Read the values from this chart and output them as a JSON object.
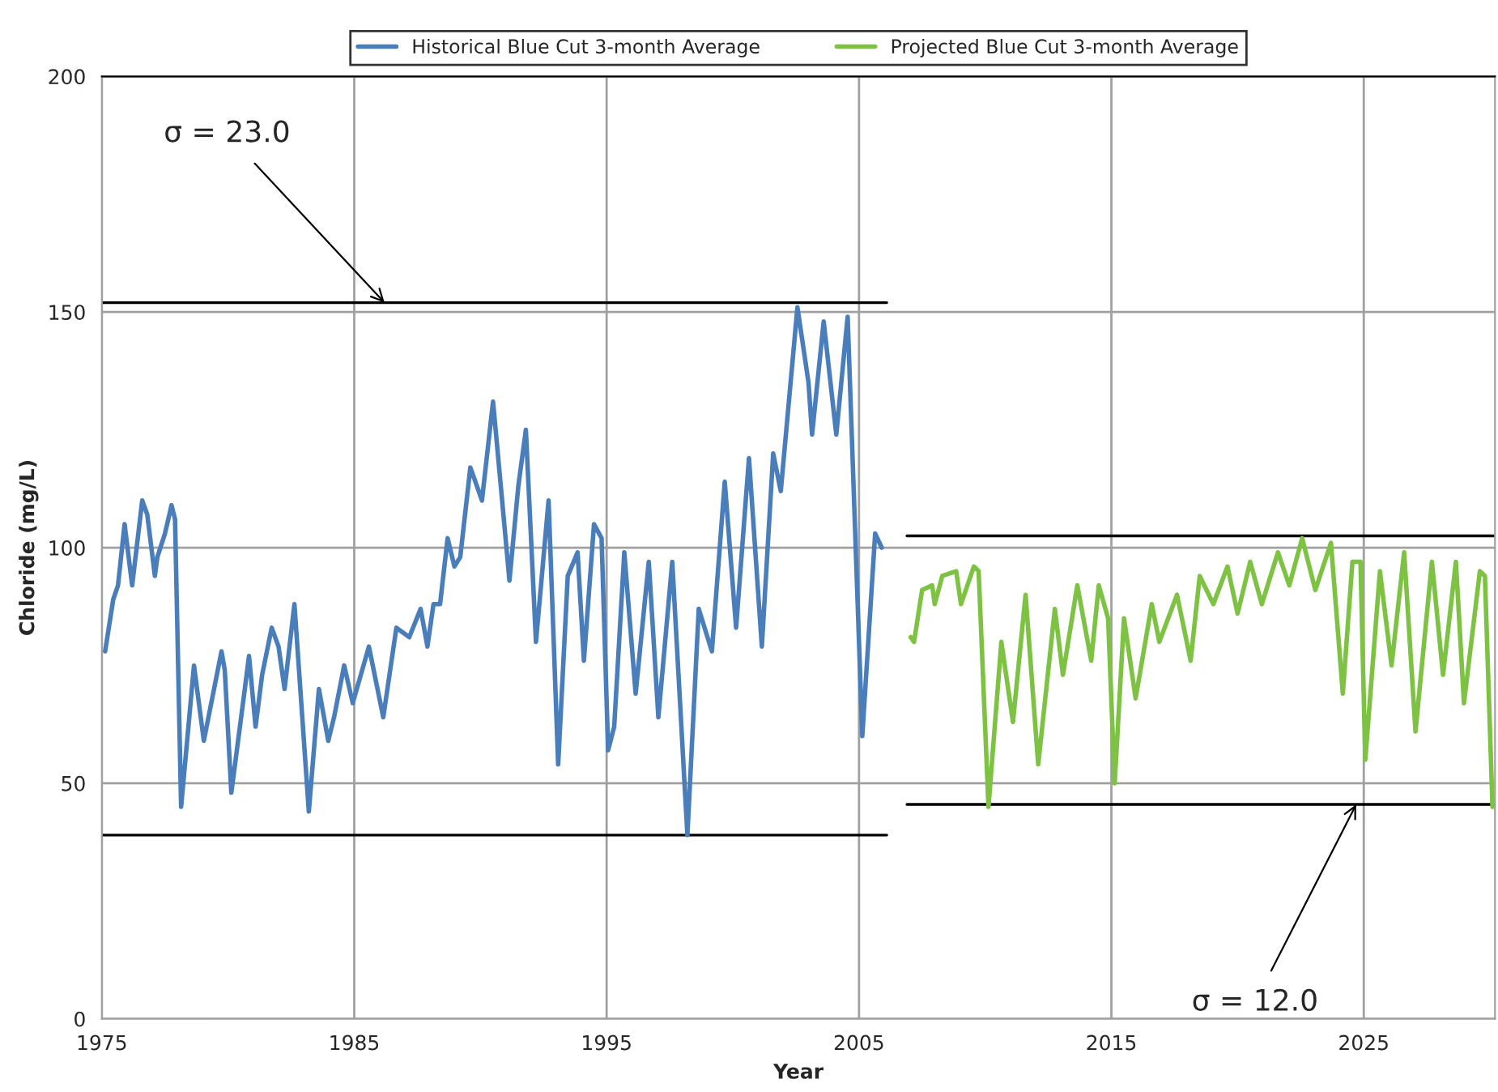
{
  "chart_data": {
    "type": "line",
    "xlabel": "Year",
    "ylabel": "Chloride (mg/L)",
    "xlim": [
      1975,
      2030.2
    ],
    "xticks": [
      1975,
      1985,
      1995,
      2005,
      2015,
      2025
    ],
    "ylim": [
      0,
      200
    ],
    "yticks": [
      0,
      50,
      100,
      150,
      200
    ],
    "grid": true,
    "legend": "top",
    "marker": "none",
    "line_style": "solid",
    "series": [
      {
        "name": "Historical Blue Cut 3-month Average",
        "color": "#4a7ebb",
        "x": [
          1975.13,
          1975.45,
          1975.64,
          1975.9,
          1976.2,
          1976.6,
          1976.8,
          1977.1,
          1977.2,
          1977.5,
          1977.76,
          1977.9,
          1978.14,
          1978.65,
          1979.04,
          1979.74,
          1979.87,
          1980.13,
          1980.64,
          1980.83,
          1981.09,
          1981.35,
          1981.73,
          1982.0,
          1982.24,
          1982.63,
          1983.2,
          1983.6,
          1983.97,
          1984.2,
          1984.6,
          1984.94,
          1985.58,
          1986.15,
          1986.67,
          1987.18,
          1987.63,
          1987.9,
          1988.14,
          1988.4,
          1988.7,
          1988.97,
          1989.2,
          1989.6,
          1989.8,
          1990.06,
          1990.5,
          1991.15,
          1991.5,
          1991.8,
          1992.2,
          1992.7,
          1993.08,
          1993.46,
          1993.85,
          1994.1,
          1994.5,
          1994.8,
          1995.06,
          1995.3,
          1995.7,
          1996.15,
          1996.67,
          1997.05,
          1997.6,
          1998.2,
          1998.65,
          1999.17,
          1999.68,
          2000.13,
          2000.64,
          2001.15,
          2001.6,
          2001.9,
          2002.56,
          2003.0,
          2003.14,
          2003.6,
          2004.1,
          2004.55,
          2005.13,
          2005.64,
          2005.9
        ],
        "values": [
          78,
          89,
          92,
          105,
          92,
          110,
          107,
          94,
          98,
          103,
          109,
          106,
          45,
          75,
          59,
          78,
          74,
          48,
          69,
          77,
          62,
          73,
          83,
          79,
          70,
          88,
          44,
          70,
          59,
          64,
          75,
          67,
          79,
          64,
          83,
          81,
          87,
          79,
          88,
          88,
          102,
          96,
          98,
          117,
          114,
          110,
          131,
          93,
          113,
          125,
          80,
          110,
          54,
          94,
          99,
          76,
          105,
          102,
          57,
          62,
          99,
          69,
          97,
          64,
          97,
          39,
          87,
          78,
          114,
          83,
          119,
          79,
          120,
          112,
          151,
          135,
          124,
          148,
          124,
          149,
          60,
          103,
          100
        ]
      },
      {
        "name": "Projected Blue Cut 3-month Average",
        "color": "#7dc242",
        "x": [
          2007.05,
          2007.18,
          2007.5,
          2007.9,
          2008.0,
          2008.3,
          2008.85,
          2009.04,
          2009.55,
          2009.74,
          2010.13,
          2010.64,
          2011.1,
          2011.6,
          2012.1,
          2012.76,
          2013.08,
          2013.65,
          2014.2,
          2014.5,
          2014.87,
          2015.13,
          2015.5,
          2015.96,
          2016.6,
          2016.9,
          2017.6,
          2018.14,
          2018.5,
          2019.04,
          2019.6,
          2020.0,
          2020.5,
          2020.96,
          2021.6,
          2022.05,
          2022.56,
          2023.08,
          2023.7,
          2024.17,
          2024.55,
          2024.87,
          2025.06,
          2025.64,
          2026.1,
          2026.6,
          2027.05,
          2027.7,
          2028.14,
          2028.65,
          2028.97,
          2029.6,
          2029.8,
          2030.1
        ],
        "values": [
          81,
          80,
          91,
          92,
          88,
          94,
          95,
          88,
          96,
          95,
          45,
          80,
          63,
          90,
          54,
          87,
          73,
          92,
          76,
          92,
          85,
          50,
          85,
          68,
          88,
          80,
          90,
          76,
          94,
          88,
          96,
          86,
          97,
          88,
          99,
          92,
          102,
          91,
          101,
          69,
          97,
          97,
          55,
          95,
          75,
          99,
          61,
          97,
          73,
          97,
          67,
          95,
          94,
          45
        ]
      },
      {
        "color": "#000000",
        "x": [
          1975,
          2006.1
        ],
        "values": [
          152,
          152
        ]
      },
      {
        "color": "#000000",
        "x": [
          1975,
          2006.1
        ],
        "values": [
          39,
          39
        ]
      },
      {
        "color": "#000000",
        "x": [
          2006.9,
          2030.2
        ],
        "values": [
          102.5,
          102.5
        ]
      },
      {
        "color": "#000000",
        "x": [
          2006.9,
          2030.2
        ],
        "values": [
          45.5,
          45.5
        ]
      }
    ],
    "annotations": [
      {
        "text": "σ = 23.0",
        "x": 1986.2,
        "y": 152
      },
      {
        "text": "σ = 12.0",
        "x": 2024.7,
        "y": 45.5
      }
    ]
  }
}
